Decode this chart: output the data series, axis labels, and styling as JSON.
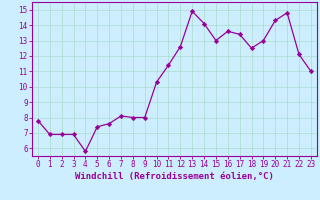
{
  "x": [
    0,
    1,
    2,
    3,
    4,
    5,
    6,
    7,
    8,
    9,
    10,
    11,
    12,
    13,
    14,
    15,
    16,
    17,
    18,
    19,
    20,
    21,
    22,
    23
  ],
  "y": [
    7.8,
    6.9,
    6.9,
    6.9,
    5.8,
    7.4,
    7.6,
    8.1,
    8.0,
    8.0,
    10.3,
    11.4,
    12.6,
    14.9,
    14.1,
    13.0,
    13.6,
    13.4,
    12.5,
    13.0,
    14.3,
    14.8,
    12.1,
    11.0
  ],
  "line_color": "#990099",
  "marker": "D",
  "marker_size": 2.2,
  "bg_color": "#cceeff",
  "grid_color": "#aaddcc",
  "xlabel": "Windchill (Refroidissement éolien,°C)",
  "ylabel": "",
  "xlim": [
    -0.5,
    23.5
  ],
  "ylim": [
    5.5,
    15.5
  ],
  "yticks": [
    6,
    7,
    8,
    9,
    10,
    11,
    12,
    13,
    14,
    15
  ],
  "xticks": [
    0,
    1,
    2,
    3,
    4,
    5,
    6,
    7,
    8,
    9,
    10,
    11,
    12,
    13,
    14,
    15,
    16,
    17,
    18,
    19,
    20,
    21,
    22,
    23
  ],
  "xlabel_color": "#990099",
  "tick_color": "#990099",
  "axes_color": "#990099",
  "tick_fontsize": 5.5,
  "xlabel_fontsize": 6.5,
  "linewidth": 0.9
}
